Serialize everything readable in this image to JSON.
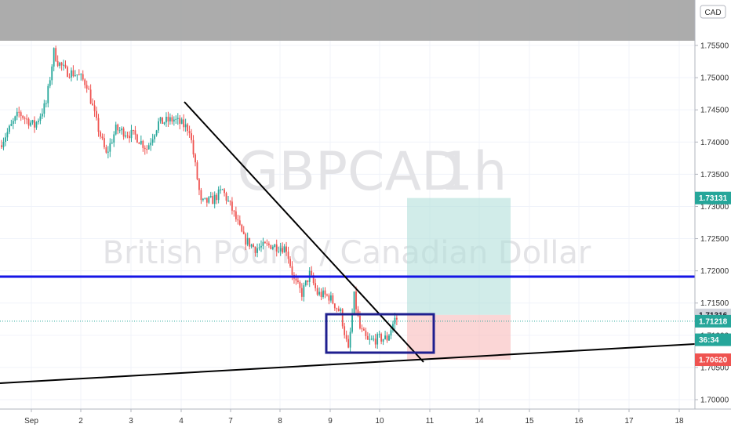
{
  "chart_data": {
    "type": "candlestick",
    "symbol": "GBPCAD",
    "interval": "1h",
    "description": "British Pound / Canadian Dollar",
    "currency_badge": "CAD",
    "y_ticks": [
      "1.75500",
      "1.75000",
      "1.74500",
      "1.74000",
      "1.73500",
      "1.73000",
      "1.72500",
      "1.72000",
      "1.71500",
      "1.71000",
      "1.70500",
      "1.70000"
    ],
    "y_tick_values": [
      1.755,
      1.75,
      1.745,
      1.74,
      1.735,
      1.73,
      1.725,
      1.72,
      1.715,
      1.71,
      1.705,
      1.7
    ],
    "ylim": [
      1.6995,
      1.7585
    ],
    "x_ticks": [
      "Sep",
      "2",
      "3",
      "4",
      "7",
      "8",
      "9",
      "10",
      "11",
      "14",
      "15",
      "16",
      "17",
      "18"
    ],
    "price_tags": [
      {
        "label": "1.73131",
        "value": 1.73131,
        "color": "#26a69a",
        "text": "light"
      },
      {
        "label": "1.71316",
        "value": 1.71316,
        "color": "#d1d4dc",
        "text": "dark"
      },
      {
        "label": "1.71218",
        "value": 1.71218,
        "color": "#26a69a",
        "text": "light"
      },
      {
        "label": "36:34",
        "value": 1.7093,
        "color": "#26a69a",
        "text": "light"
      },
      {
        "label": "1.70620",
        "value": 1.7062,
        "color": "#ef5350",
        "text": "light"
      }
    ],
    "horizontal_line": {
      "value": 1.7191,
      "color": "#1515e6"
    },
    "position": {
      "entry": 1.71316,
      "target": 1.73131,
      "stop": 1.7062
    },
    "colors": {
      "up": "#26a69a",
      "down": "#ef5350",
      "grey_band": "#9e9e9e",
      "line": "#000000",
      "box": "#1f1f8f"
    },
    "ohlc_path": [
      {
        "bar": 0,
        "price": 1.7395
      },
      {
        "bar": 10,
        "price": 1.7445
      },
      {
        "bar": 18,
        "price": 1.7425
      },
      {
        "bar": 24,
        "price": 1.746
      },
      {
        "bar": 28,
        "price": 1.754
      },
      {
        "bar": 30,
        "price": 1.7525
      },
      {
        "bar": 34,
        "price": 1.751
      },
      {
        "bar": 40,
        "price": 1.7505
      },
      {
        "bar": 45,
        "price": 1.749
      },
      {
        "bar": 50,
        "price": 1.743
      },
      {
        "bar": 55,
        "price": 1.738
      },
      {
        "bar": 60,
        "price": 1.742
      },
      {
        "bar": 70,
        "price": 1.741
      },
      {
        "bar": 76,
        "price": 1.739
      },
      {
        "bar": 82,
        "price": 1.743
      },
      {
        "bar": 90,
        "price": 1.7435
      },
      {
        "bar": 98,
        "price": 1.742
      },
      {
        "bar": 104,
        "price": 1.7305
      },
      {
        "bar": 110,
        "price": 1.731
      },
      {
        "bar": 115,
        "price": 1.7325
      },
      {
        "bar": 120,
        "price": 1.7295
      },
      {
        "bar": 126,
        "price": 1.725
      },
      {
        "bar": 132,
        "price": 1.7235
      },
      {
        "bar": 140,
        "price": 1.724
      },
      {
        "bar": 148,
        "price": 1.7235
      },
      {
        "bar": 152,
        "price": 1.7185
      },
      {
        "bar": 156,
        "price": 1.7165
      },
      {
        "bar": 160,
        "price": 1.7195
      },
      {
        "bar": 164,
        "price": 1.7165
      },
      {
        "bar": 170,
        "price": 1.716
      },
      {
        "bar": 176,
        "price": 1.7135
      },
      {
        "bar": 180,
        "price": 1.7075
      },
      {
        "bar": 183,
        "price": 1.716
      },
      {
        "bar": 186,
        "price": 1.711
      },
      {
        "bar": 190,
        "price": 1.709
      },
      {
        "bar": 196,
        "price": 1.7095
      },
      {
        "bar": 200,
        "price": 1.7095
      },
      {
        "bar": 204,
        "price": 1.7125
      }
    ],
    "total_bars": 205
  }
}
